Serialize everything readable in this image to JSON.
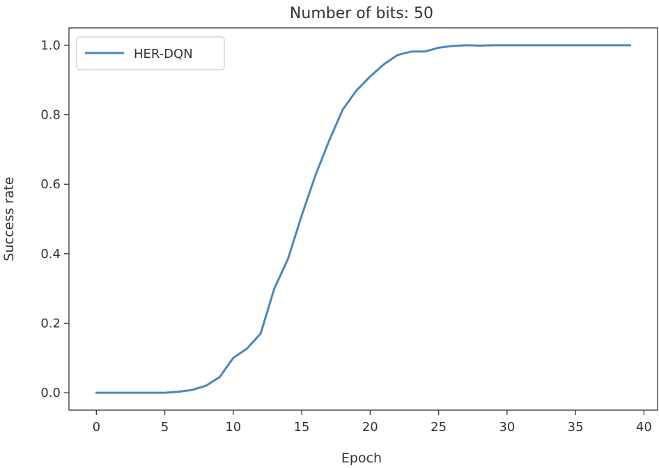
{
  "chart_data": {
    "type": "line",
    "title": "Number of bits: 50",
    "xlabel": "Epoch",
    "ylabel": "Success rate",
    "xlim": [
      -2,
      41
    ],
    "ylim": [
      -0.05,
      1.05
    ],
    "xticks": [
      0,
      5,
      10,
      15,
      20,
      25,
      30,
      35,
      40
    ],
    "yticks": [
      0.0,
      0.2,
      0.4,
      0.6,
      0.8,
      1.0
    ],
    "xtick_labels": [
      "0",
      "5",
      "10",
      "15",
      "20",
      "25",
      "30",
      "35",
      "40"
    ],
    "ytick_labels": [
      "0.0",
      "0.2",
      "0.4",
      "0.6",
      "0.8",
      "1.0"
    ],
    "grid": false,
    "legend_position": "top-left",
    "series": [
      {
        "name": "HER-DQN",
        "color": "#4a86bd",
        "x": [
          0,
          1,
          2,
          3,
          4,
          5,
          6,
          7,
          8,
          9,
          10,
          11,
          12,
          13,
          14,
          15,
          16,
          17,
          18,
          19,
          20,
          21,
          22,
          23,
          24,
          25,
          26,
          27,
          28,
          29,
          30,
          31,
          32,
          33,
          34,
          35,
          36,
          37,
          38,
          39
        ],
        "y": [
          0.0,
          0.0,
          0.0,
          0.0,
          0.0,
          0.0,
          0.003,
          0.008,
          0.02,
          0.045,
          0.1,
          0.127,
          0.17,
          0.3,
          0.385,
          0.51,
          0.625,
          0.725,
          0.815,
          0.87,
          0.91,
          0.945,
          0.972,
          0.982,
          0.982,
          0.993,
          0.998,
          1.0,
          0.999,
          1.0,
          1.0,
          1.0,
          1.0,
          1.0,
          1.0,
          1.0,
          1.0,
          1.0,
          1.0,
          1.0
        ]
      }
    ]
  }
}
